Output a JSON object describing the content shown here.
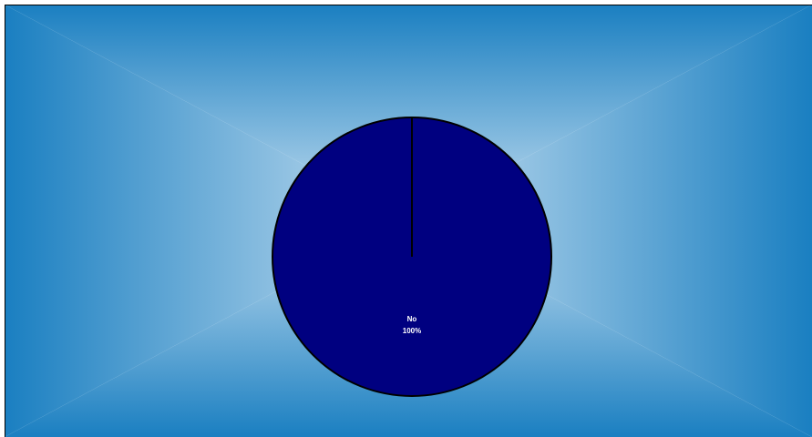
{
  "chart_data": {
    "type": "pie",
    "categories": [
      "No"
    ],
    "values": [
      100
    ],
    "value_labels": [
      "100%"
    ],
    "colors": [
      "#000080"
    ]
  }
}
